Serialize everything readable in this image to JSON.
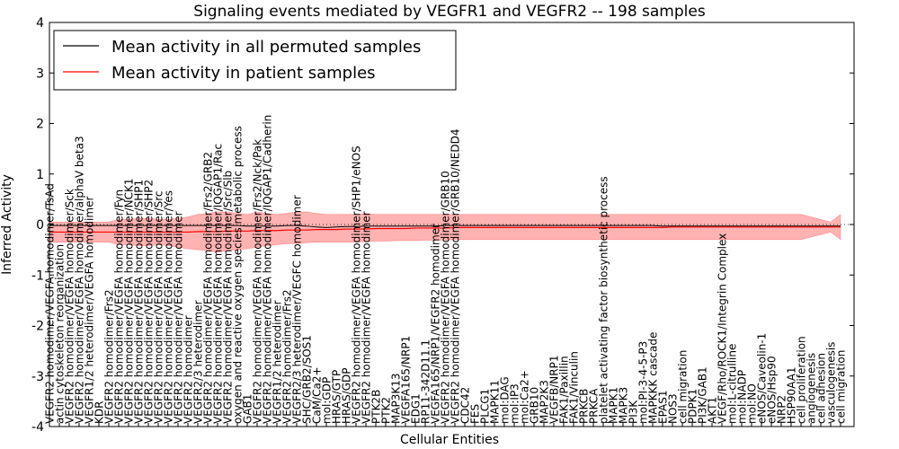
{
  "chart_data": {
    "type": "line",
    "title": "Signaling events mediated by VEGFR1 and VEGFR2 -- 198 samples",
    "xlabel": "Cellular Entities",
    "ylabel": "Inferred Activity",
    "ylim": [
      -4,
      4
    ],
    "yticks": [
      -4,
      -3,
      -2,
      -1,
      0,
      1,
      2,
      3,
      4
    ],
    "legend_position": "top-left",
    "series": [
      {
        "name": "Mean activity in all permuted samples",
        "color": "#000000"
      },
      {
        "name": "Mean activity in patient samples",
        "color": "#ff0000",
        "band_color": "#ff7f7f"
      }
    ],
    "categories": [
      "VEGFR2 homodimer/VEGFA homodimer/TsAd",
      "actin cytoskeleton reorganization",
      "VEGFR2 homodimer/VEGFA homodimer/Sck",
      "VEGFR2 homodimer/VEGFA homodimer/alphaV beta3",
      "VEGFR1/2 heterodimer/VEGFA homodimer",
      "KDR",
      "VEGFR2 homodimer/Frs2",
      "VEGFR2 homodimer/VEGFA homodimer/Fyn",
      "VEGFR2 homodimer/VEGFA homodimer/NCK1",
      "VEGFR2 homodimer/VEGFA homodimer/SHP1",
      "VEGFR2 homodimer/VEGFA homodimer/SHP2",
      "VEGFR2 homodimer/VEGFA homodimer/Src",
      "VEGFR2 homodimer/VEGFA homodimer/Yes",
      "VEGFR2 homodimer/VEGFA homodimer",
      "VEGFR2 homodimer",
      "VEGFR2/3 heterodimer",
      "VEGFR2 homodimer/VEGFA homodimer/Frs2/GRB2",
      "VEGFR2 homodimer/VEGFA homodimer/IQGAP1/Rac",
      "VEGFR2 homodimer/VEGFA homodimer/Src/Slb",
      "oxygen and reactive oxygen species metabolic process",
      "GAB1",
      "VEGFR2 homodimer/VEGFA homodimer/Frs2/Nck/Pak",
      "VEGFR2 homodimer/VEGFA homodimer/IQGAP1/Cadherin",
      "VEGFR1/2 heterodimer",
      "VEGFR2 homodimer/Frs2",
      "VEGFR2/3 heterodimer/VEGFC homodimer",
      "SHC/GRB2/SOS1",
      "CaM/Ca2+",
      "mol:GDP",
      "HRAS/GTP",
      "HRAS/GDP",
      "VEGFR2 homodimer/VEGFA homodimer/SHP1/eNOS",
      "VEGFR2 homodimer/VEGFA homodimer",
      "PTK2B",
      "PTK2",
      "MAP3K13",
      "VEGFA165/NRP1",
      "EDG1",
      "RP11-342D11.1",
      "VEGFA165/NRP1/VEGFR2 homodimer",
      "VEGFR2 homodimer/VEGFA homodimer/GRB10",
      "VEGFR2 homodimer/VEGFA homodimer/GRB10/NEDD4",
      "CDC42",
      "FES",
      "PLCG1",
      "MAPK11",
      "mol:DAG",
      "mol:IP3",
      "mol:Ca2+",
      "GRB10",
      "MAP2K3",
      "VEGFB/NRP1",
      "FAK1/Paxillin",
      "FAK1/Vinculin",
      "PRKCB",
      "PRKCA",
      "platelet activating factor biosynthetic process",
      "MAPK1",
      "MAPK3",
      "PI3K",
      "mol:PI-3-4-5-P3",
      "MAPKKK cascade",
      "EPAS1",
      "NOS3",
      "cell migration",
      "PDPK1",
      "PI3K/GAB1",
      "AKT1",
      "VEGF/Rho/ROCK1/Integrin Complex",
      "mol:L-citrulline",
      "mol:NADP",
      "mol:NO",
      "eNOS/Caveolin-1",
      "eNOS/Hsp90",
      "NRP2",
      "HSP90AA1",
      "cell proliferation",
      "angiogenesis",
      "cell adhesion",
      "vasculogenesis",
      "cell migration"
    ],
    "patient_mean": [
      -0.15,
      -0.15,
      -0.15,
      -0.15,
      -0.15,
      -0.15,
      -0.15,
      -0.15,
      -0.15,
      -0.15,
      -0.15,
      -0.15,
      -0.15,
      -0.15,
      -0.15,
      -0.14,
      -0.14,
      -0.14,
      -0.13,
      -0.13,
      -0.13,
      -0.12,
      -0.12,
      -0.12,
      -0.11,
      -0.11,
      -0.11,
      -0.1,
      -0.1,
      -0.1,
      -0.09,
      -0.09,
      -0.09,
      -0.08,
      -0.08,
      -0.08,
      -0.08,
      -0.07,
      -0.07,
      -0.07,
      -0.07,
      -0.06,
      -0.06,
      -0.06,
      -0.06,
      -0.06,
      -0.06,
      -0.06,
      -0.06,
      -0.06,
      -0.06,
      -0.06,
      -0.06,
      -0.06,
      -0.06,
      -0.06,
      -0.06,
      -0.06,
      -0.06,
      -0.06,
      -0.06,
      -0.06,
      -0.06,
      -0.05,
      -0.05,
      -0.05,
      -0.05,
      -0.05,
      -0.05,
      -0.05,
      -0.05,
      -0.05,
      -0.05,
      -0.05,
      -0.05,
      -0.05,
      -0.05,
      -0.05,
      -0.05,
      -0.05,
      -0.05
    ],
    "band_upper": [
      0.05,
      0.05,
      0.05,
      0.05,
      0.05,
      0.05,
      0.05,
      0.1,
      0.1,
      0.12,
      0.12,
      0.1,
      0.1,
      0.12,
      0.15,
      0.2,
      0.22,
      0.25,
      0.25,
      0.22,
      0.2,
      0.25,
      0.22,
      0.2,
      0.22,
      0.25,
      0.25,
      0.22,
      0.2,
      0.2,
      0.2,
      0.2,
      0.22,
      0.2,
      0.2,
      0.2,
      0.2,
      0.2,
      0.2,
      0.2,
      0.2,
      0.2,
      0.2,
      0.2,
      0.2,
      0.2,
      0.2,
      0.2,
      0.2,
      0.2,
      0.2,
      0.2,
      0.2,
      0.2,
      0.2,
      0.2,
      0.2,
      0.2,
      0.2,
      0.2,
      0.2,
      0.2,
      0.2,
      0.2,
      0.2,
      0.2,
      0.2,
      0.2,
      0.2,
      0.2,
      0.2,
      0.2,
      0.2,
      0.2,
      0.2,
      0.2,
      0.2,
      0.15,
      0.1,
      0.05,
      0.2
    ],
    "band_lower": [
      -0.35,
      -0.35,
      -0.35,
      -0.35,
      -0.35,
      -0.35,
      -0.35,
      -0.4,
      -0.4,
      -0.42,
      -0.42,
      -0.4,
      -0.42,
      -0.45,
      -0.48,
      -0.5,
      -0.52,
      -0.55,
      -0.52,
      -0.5,
      -0.48,
      -0.45,
      -0.42,
      -0.4,
      -0.38,
      -0.38,
      -0.36,
      -0.35,
      -0.35,
      -0.35,
      -0.35,
      -0.35,
      -0.34,
      -0.33,
      -0.33,
      -0.32,
      -0.32,
      -0.32,
      -0.31,
      -0.31,
      -0.31,
      -0.3,
      -0.3,
      -0.3,
      -0.3,
      -0.3,
      -0.3,
      -0.3,
      -0.3,
      -0.3,
      -0.3,
      -0.3,
      -0.3,
      -0.3,
      -0.3,
      -0.3,
      -0.3,
      -0.3,
      -0.3,
      -0.3,
      -0.3,
      -0.3,
      -0.3,
      -0.3,
      -0.3,
      -0.3,
      -0.3,
      -0.3,
      -0.3,
      -0.3,
      -0.3,
      -0.3,
      -0.3,
      -0.3,
      -0.3,
      -0.3,
      -0.3,
      -0.25,
      -0.2,
      -0.15,
      -0.3
    ],
    "permuted_mean": [
      -0.02,
      -0.02,
      -0.02,
      -0.02,
      -0.02,
      -0.02,
      -0.02,
      -0.02,
      -0.02,
      -0.02,
      -0.02,
      -0.02,
      -0.02,
      -0.02,
      -0.02,
      -0.02,
      -0.02,
      -0.02,
      -0.02,
      -0.02,
      -0.03,
      -0.03,
      -0.03,
      -0.03,
      -0.02,
      -0.02,
      -0.03,
      -0.05,
      -0.06,
      -0.05,
      -0.04,
      -0.04,
      -0.03,
      -0.03,
      -0.03,
      -0.03,
      -0.03,
      -0.03,
      -0.03,
      -0.03,
      -0.02,
      -0.02,
      -0.02,
      -0.02,
      -0.02,
      -0.02,
      -0.02,
      -0.02,
      -0.02,
      -0.02,
      -0.02,
      -0.02,
      -0.02,
      -0.02,
      -0.02,
      -0.02,
      -0.02,
      -0.02,
      -0.02,
      -0.02,
      -0.02,
      -0.02,
      -0.03,
      -0.03,
      -0.03,
      -0.03,
      -0.03,
      -0.03,
      -0.03,
      -0.03,
      -0.03,
      -0.03,
      -0.03,
      -0.03,
      -0.03,
      -0.03,
      -0.03,
      -0.03,
      -0.03,
      -0.03,
      -0.03
    ]
  }
}
